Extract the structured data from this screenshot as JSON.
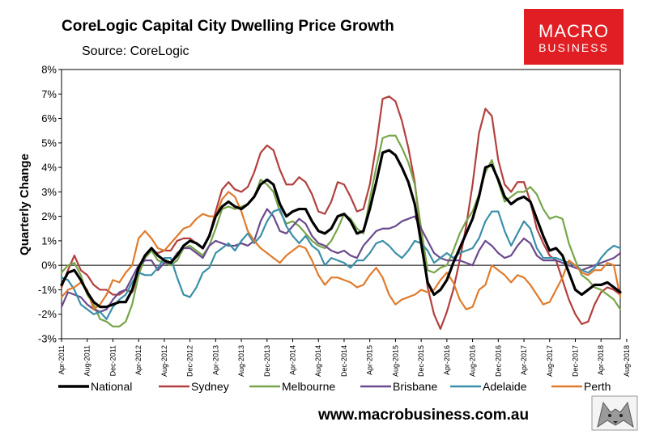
{
  "brand": {
    "line1": "MACRO",
    "line2": "BUSINESS",
    "color": "#e01e23",
    "footer": "www.macrobusiness.com.au"
  },
  "chart_data": {
    "type": "line",
    "title": "CoreLogic Capital City Dwelling Price Growth",
    "subtitle": "Source: CoreLogic",
    "ylabel": "Quarterly Change",
    "xlabel": "",
    "ylim": [
      -3,
      8
    ],
    "yticks": [
      -3,
      -2,
      -1,
      0,
      1,
      2,
      3,
      4,
      5,
      6,
      7,
      8
    ],
    "yticklabels": [
      "-3%",
      "-2%",
      "-1%",
      "0%",
      "1%",
      "2%",
      "3%",
      "4%",
      "5%",
      "6%",
      "7%",
      "8%"
    ],
    "xtick_index": [
      0,
      4,
      8,
      12,
      16,
      20,
      24,
      28,
      32,
      36,
      40,
      44,
      48,
      52,
      56,
      60,
      64,
      68,
      72,
      76,
      80,
      84,
      88
    ],
    "xticklabels": [
      "Apr-2011",
      "Aug-2011",
      "Dec-2011",
      "Apr-2012",
      "Aug-2012",
      "Dec-2012",
      "Apr-2013",
      "Aug-2013",
      "Dec-2013",
      "Apr-2014",
      "Aug-2014",
      "Dec-2014",
      "Apr-2015",
      "Aug-2015",
      "Dec-2015",
      "Apr-2016",
      "Aug-2016",
      "Dec-2016",
      "Apr-2017",
      "Aug-2017",
      "Dec-2017",
      "Apr-2018",
      "Aug-2018"
    ],
    "series": [
      {
        "name": "National",
        "color": "#000000",
        "width": 3.2,
        "values": [
          -0.8,
          -0.3,
          -0.2,
          -0.6,
          -1.1,
          -1.5,
          -1.7,
          -1.7,
          -1.6,
          -1.5,
          -1.5,
          -1.0,
          -0.1,
          0.4,
          0.7,
          0.4,
          0.2,
          0.1,
          0.4,
          0.8,
          1.0,
          0.9,
          0.7,
          1.2,
          2.0,
          2.4,
          2.6,
          2.4,
          2.3,
          2.5,
          2.8,
          3.3,
          3.5,
          3.3,
          2.5,
          2.0,
          2.2,
          2.3,
          2.3,
          1.8,
          1.4,
          1.3,
          1.5,
          2.0,
          2.1,
          1.8,
          1.3,
          1.4,
          2.3,
          3.4,
          4.6,
          4.7,
          4.5,
          4.0,
          3.4,
          2.5,
          0.9,
          -0.7,
          -1.2,
          -1.0,
          -0.6,
          0.1,
          0.7,
          1.3,
          1.9,
          2.8,
          4.0,
          4.1,
          3.5,
          2.8,
          2.5,
          2.7,
          2.8,
          2.6,
          1.9,
          1.2,
          0.6,
          0.7,
          0.4,
          -0.3,
          -1.0,
          -1.2,
          -1.0,
          -0.8,
          -0.8,
          -0.7,
          -0.9,
          -1.1
        ]
      },
      {
        "name": "Sydney",
        "color": "#b2403e",
        "width": 2.2,
        "values": [
          -0.9,
          -0.2,
          0.4,
          -0.2,
          -0.4,
          -0.8,
          -1.0,
          -1.0,
          -1.2,
          -1.2,
          -1.0,
          -1.1,
          -0.3,
          0.3,
          0.6,
          0.5,
          0.6,
          0.6,
          1.0,
          1.1,
          1.1,
          0.9,
          0.7,
          1.2,
          2.2,
          3.1,
          3.4,
          3.1,
          3.0,
          3.2,
          3.8,
          4.6,
          4.9,
          4.7,
          3.9,
          3.3,
          3.3,
          3.6,
          3.4,
          2.9,
          2.2,
          2.1,
          2.6,
          3.4,
          3.3,
          2.8,
          2.2,
          2.3,
          3.3,
          4.9,
          6.8,
          6.9,
          6.7,
          5.9,
          4.8,
          3.4,
          1.2,
          -0.9,
          -2.0,
          -2.6,
          -1.9,
          -1.0,
          0.2,
          1.6,
          3.3,
          5.4,
          6.4,
          6.1,
          4.3,
          3.3,
          3.0,
          3.4,
          3.4,
          2.6,
          1.5,
          0.9,
          0.4,
          0.2,
          -0.6,
          -1.4,
          -2.0,
          -2.4,
          -2.3,
          -1.6,
          -1.1,
          -0.9,
          -1.0,
          -1.2
        ]
      },
      {
        "name": "Melbourne",
        "color": "#78a54a",
        "width": 2.2,
        "values": [
          -0.3,
          0.0,
          0.1,
          -0.4,
          -1.2,
          -1.6,
          -2.2,
          -2.3,
          -2.5,
          -2.5,
          -2.3,
          -1.6,
          -0.4,
          0.3,
          0.6,
          0.2,
          0.1,
          0.0,
          0.2,
          0.7,
          0.8,
          0.6,
          0.4,
          0.8,
          1.5,
          2.3,
          2.4,
          2.3,
          2.4,
          2.5,
          2.8,
          3.5,
          3.3,
          3.0,
          2.2,
          1.7,
          1.8,
          1.6,
          1.3,
          1.0,
          0.8,
          0.7,
          1.0,
          1.5,
          2.1,
          1.9,
          1.5,
          1.3,
          2.7,
          4.0,
          5.2,
          5.3,
          5.3,
          4.8,
          4.2,
          3.3,
          1.5,
          -0.2,
          -0.3,
          -0.1,
          0.0,
          0.6,
          1.3,
          1.8,
          2.2,
          2.9,
          3.8,
          4.3,
          3.4,
          2.6,
          2.8,
          3.0,
          3.0,
          3.2,
          2.9,
          2.3,
          1.9,
          2.0,
          1.9,
          0.9,
          0.2,
          -0.4,
          -0.6,
          -0.9,
          -1.0,
          -1.2,
          -1.4,
          -1.8
        ]
      },
      {
        "name": "Brisbane",
        "color": "#6a4a8c",
        "width": 2.2,
        "values": [
          -1.7,
          -1.1,
          -1.2,
          -1.3,
          -1.6,
          -1.8,
          -1.9,
          -1.8,
          -1.4,
          -1.1,
          -1.0,
          -0.5,
          0.0,
          0.2,
          0.2,
          -0.2,
          0.1,
          0.1,
          0.5,
          0.7,
          0.7,
          0.5,
          0.3,
          0.8,
          1.0,
          0.9,
          0.8,
          0.8,
          0.9,
          0.8,
          1.0,
          1.8,
          2.3,
          2.0,
          1.4,
          1.3,
          1.6,
          1.9,
          1.7,
          1.2,
          0.9,
          0.8,
          0.6,
          0.5,
          0.6,
          0.4,
          0.3,
          0.8,
          1.1,
          1.4,
          1.5,
          1.5,
          1.6,
          1.8,
          1.9,
          2.0,
          1.5,
          1.0,
          0.5,
          0.3,
          0.2,
          0.2,
          0.2,
          0.1,
          0.0,
          0.6,
          1.0,
          0.8,
          0.5,
          0.3,
          0.4,
          0.8,
          1.1,
          0.9,
          0.4,
          0.2,
          0.2,
          0.2,
          0.1,
          0.0,
          -0.1,
          -0.2,
          -0.1,
          0.0,
          0.1,
          0.2,
          0.3,
          0.5
        ]
      },
      {
        "name": "Adelaide",
        "color": "#3b8fa8",
        "width": 2.2,
        "values": [
          -0.5,
          -0.6,
          -1.0,
          -1.6,
          -1.8,
          -2.0,
          -1.9,
          -2.2,
          -1.7,
          -1.4,
          -1.2,
          -0.7,
          -0.3,
          -0.4,
          -0.4,
          -0.1,
          0.3,
          0.3,
          -0.5,
          -1.2,
          -1.3,
          -0.9,
          -0.3,
          -0.1,
          0.5,
          0.7,
          0.9,
          0.6,
          1.0,
          1.3,
          0.9,
          1.2,
          1.8,
          2.2,
          2.3,
          1.6,
          1.2,
          0.9,
          1.2,
          0.8,
          0.6,
          0.0,
          0.3,
          0.2,
          0.1,
          -0.1,
          0.2,
          0.2,
          0.5,
          0.9,
          1.0,
          0.8,
          0.5,
          0.3,
          0.6,
          1.0,
          0.9,
          0.6,
          0.1,
          0.3,
          0.5,
          0.3,
          0.5,
          0.6,
          0.7,
          1.1,
          1.8,
          2.2,
          2.2,
          1.4,
          0.8,
          1.3,
          1.8,
          1.5,
          0.7,
          0.3,
          0.3,
          0.3,
          0.2,
          0.1,
          0.0,
          -0.2,
          -0.3,
          -0.1,
          0.3,
          0.6,
          0.8,
          0.7
        ]
      },
      {
        "name": "Perth",
        "color": "#e07b2c",
        "width": 2.2,
        "values": [
          -1.3,
          -1.0,
          -0.9,
          -0.7,
          -1.0,
          -1.8,
          -1.6,
          -1.2,
          -0.6,
          -0.7,
          -0.3,
          0.0,
          1.1,
          1.4,
          1.1,
          0.7,
          0.6,
          0.9,
          1.2,
          1.5,
          1.6,
          1.9,
          2.1,
          2.0,
          2.0,
          2.7,
          3.0,
          2.8,
          2.2,
          1.4,
          1.0,
          0.7,
          0.5,
          0.3,
          0.1,
          0.4,
          0.6,
          0.8,
          0.7,
          0.2,
          -0.4,
          -0.8,
          -0.5,
          -0.5,
          -0.6,
          -0.7,
          -0.9,
          -0.8,
          -0.4,
          -0.1,
          -0.5,
          -1.2,
          -1.6,
          -1.4,
          -1.3,
          -1.2,
          -1.0,
          -1.1,
          -1.0,
          -0.6,
          -0.3,
          -0.7,
          -1.4,
          -1.8,
          -1.7,
          -1.0,
          -0.8,
          0.0,
          -0.2,
          -0.4,
          -0.7,
          -0.4,
          -0.5,
          -0.8,
          -1.2,
          -1.6,
          -1.5,
          -1.0,
          -0.5,
          0.2,
          0.0,
          -0.3,
          -0.4,
          -0.2,
          -0.2,
          0.1,
          0.0,
          -1.3
        ]
      }
    ]
  }
}
